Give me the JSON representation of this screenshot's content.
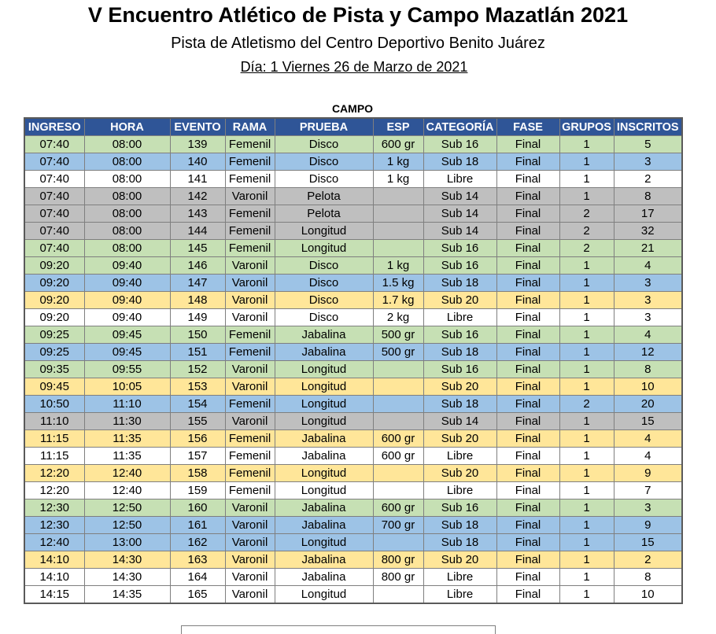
{
  "header": {
    "title": "V Encuentro Atlético de Pista y Campo Mazatlán 2021",
    "venue": "Pista de Atletismo del Centro Deportivo Benito Juárez",
    "day": "Día: 1 Viernes 26 de Marzo de 2021"
  },
  "section_title": "CAMPO",
  "columns": [
    "INGRESO",
    "HORA",
    "EVENTO",
    "RAMA",
    "PRUEBA",
    "ESP",
    "CATEGORÍA",
    "FASE",
    "GRUPOS",
    "INSCRITOS"
  ],
  "row_colors": {
    "green": "#c6e0b4",
    "blue": "#9dc3e6",
    "white": "#ffffff",
    "gray": "#bfbfbf",
    "yellow": "#ffe699",
    "header": "#2f5597"
  },
  "rows": [
    {
      "color": "green",
      "cells": [
        "07:40",
        "08:00",
        "139",
        "Femenil",
        "Disco",
        "600 gr",
        "Sub 16",
        "Final",
        "1",
        "5"
      ]
    },
    {
      "color": "blue",
      "cells": [
        "07:40",
        "08:00",
        "140",
        "Femenil",
        "Disco",
        "1 kg",
        "Sub 18",
        "Final",
        "1",
        "3"
      ]
    },
    {
      "color": "white",
      "cells": [
        "07:40",
        "08:00",
        "141",
        "Femenil",
        "Disco",
        "1 kg",
        "Libre",
        "Final",
        "1",
        "2"
      ]
    },
    {
      "color": "gray",
      "cells": [
        "07:40",
        "08:00",
        "142",
        "Varonil",
        "Pelota",
        "",
        "Sub 14",
        "Final",
        "1",
        "8"
      ]
    },
    {
      "color": "gray",
      "cells": [
        "07:40",
        "08:00",
        "143",
        "Femenil",
        "Pelota",
        "",
        "Sub 14",
        "Final",
        "2",
        "17"
      ]
    },
    {
      "color": "gray",
      "cells": [
        "07:40",
        "08:00",
        "144",
        "Femenil",
        "Longitud",
        "",
        "Sub 14",
        "Final",
        "2",
        "32"
      ]
    },
    {
      "color": "green",
      "cells": [
        "07:40",
        "08:00",
        "145",
        "Femenil",
        "Longitud",
        "",
        "Sub 16",
        "Final",
        "2",
        "21"
      ]
    },
    {
      "color": "green",
      "cells": [
        "09:20",
        "09:40",
        "146",
        "Varonil",
        "Disco",
        "1 kg",
        "Sub 16",
        "Final",
        "1",
        "4"
      ]
    },
    {
      "color": "blue",
      "cells": [
        "09:20",
        "09:40",
        "147",
        "Varonil",
        "Disco",
        "1.5 kg",
        "Sub 18",
        "Final",
        "1",
        "3"
      ]
    },
    {
      "color": "yellow",
      "cells": [
        "09:20",
        "09:40",
        "148",
        "Varonil",
        "Disco",
        "1.7 kg",
        "Sub 20",
        "Final",
        "1",
        "3"
      ]
    },
    {
      "color": "white",
      "cells": [
        "09:20",
        "09:40",
        "149",
        "Varonil",
        "Disco",
        "2 kg",
        "Libre",
        "Final",
        "1",
        "3"
      ]
    },
    {
      "color": "green",
      "cells": [
        "09:25",
        "09:45",
        "150",
        "Femenil",
        "Jabalina",
        "500 gr",
        "Sub 16",
        "Final",
        "1",
        "4"
      ]
    },
    {
      "color": "blue",
      "cells": [
        "09:25",
        "09:45",
        "151",
        "Femenil",
        "Jabalina",
        "500 gr",
        "Sub 18",
        "Final",
        "1",
        "12"
      ]
    },
    {
      "color": "green",
      "cells": [
        "09:35",
        "09:55",
        "152",
        "Varonil",
        "Longitud",
        "",
        "Sub 16",
        "Final",
        "1",
        "8"
      ]
    },
    {
      "color": "yellow",
      "cells": [
        "09:45",
        "10:05",
        "153",
        "Varonil",
        "Longitud",
        "",
        "Sub 20",
        "Final",
        "1",
        "10"
      ]
    },
    {
      "color": "blue",
      "cells": [
        "10:50",
        "11:10",
        "154",
        "Femenil",
        "Longitud",
        "",
        "Sub 18",
        "Final",
        "2",
        "20"
      ]
    },
    {
      "color": "gray",
      "cells": [
        "11:10",
        "11:30",
        "155",
        "Varonil",
        "Longitud",
        "",
        "Sub 14",
        "Final",
        "1",
        "15"
      ]
    },
    {
      "color": "yellow",
      "cells": [
        "11:15",
        "11:35",
        "156",
        "Femenil",
        "Jabalina",
        "600 gr",
        "Sub 20",
        "Final",
        "1",
        "4"
      ]
    },
    {
      "color": "white",
      "cells": [
        "11:15",
        "11:35",
        "157",
        "Femenil",
        "Jabalina",
        "600 gr",
        "Libre",
        "Final",
        "1",
        "4"
      ]
    },
    {
      "color": "yellow",
      "cells": [
        "12:20",
        "12:40",
        "158",
        "Femenil",
        "Longitud",
        "",
        "Sub 20",
        "Final",
        "1",
        "9"
      ]
    },
    {
      "color": "white",
      "cells": [
        "12:20",
        "12:40",
        "159",
        "Femenil",
        "Longitud",
        "",
        "Libre",
        "Final",
        "1",
        "7"
      ]
    },
    {
      "color": "green",
      "cells": [
        "12:30",
        "12:50",
        "160",
        "Varonil",
        "Jabalina",
        "600 gr",
        "Sub 16",
        "Final",
        "1",
        "3"
      ]
    },
    {
      "color": "blue",
      "cells": [
        "12:30",
        "12:50",
        "161",
        "Varonil",
        "Jabalina",
        "700 gr",
        "Sub 18",
        "Final",
        "1",
        "9"
      ]
    },
    {
      "color": "blue",
      "cells": [
        "12:40",
        "13:00",
        "162",
        "Varonil",
        "Longitud",
        "",
        "Sub 18",
        "Final",
        "1",
        "15"
      ]
    },
    {
      "color": "yellow",
      "cells": [
        "14:10",
        "14:30",
        "163",
        "Varonil",
        "Jabalina",
        "800 gr",
        "Sub 20",
        "Final",
        "1",
        "2"
      ]
    },
    {
      "color": "white",
      "cells": [
        "14:10",
        "14:30",
        "164",
        "Varonil",
        "Jabalina",
        "800 gr",
        "Libre",
        "Final",
        "1",
        "8"
      ]
    },
    {
      "color": "white",
      "cells": [
        "14:15",
        "14:35",
        "165",
        "Varonil",
        "Longitud",
        "",
        "Libre",
        "Final",
        "1",
        "10"
      ]
    }
  ]
}
